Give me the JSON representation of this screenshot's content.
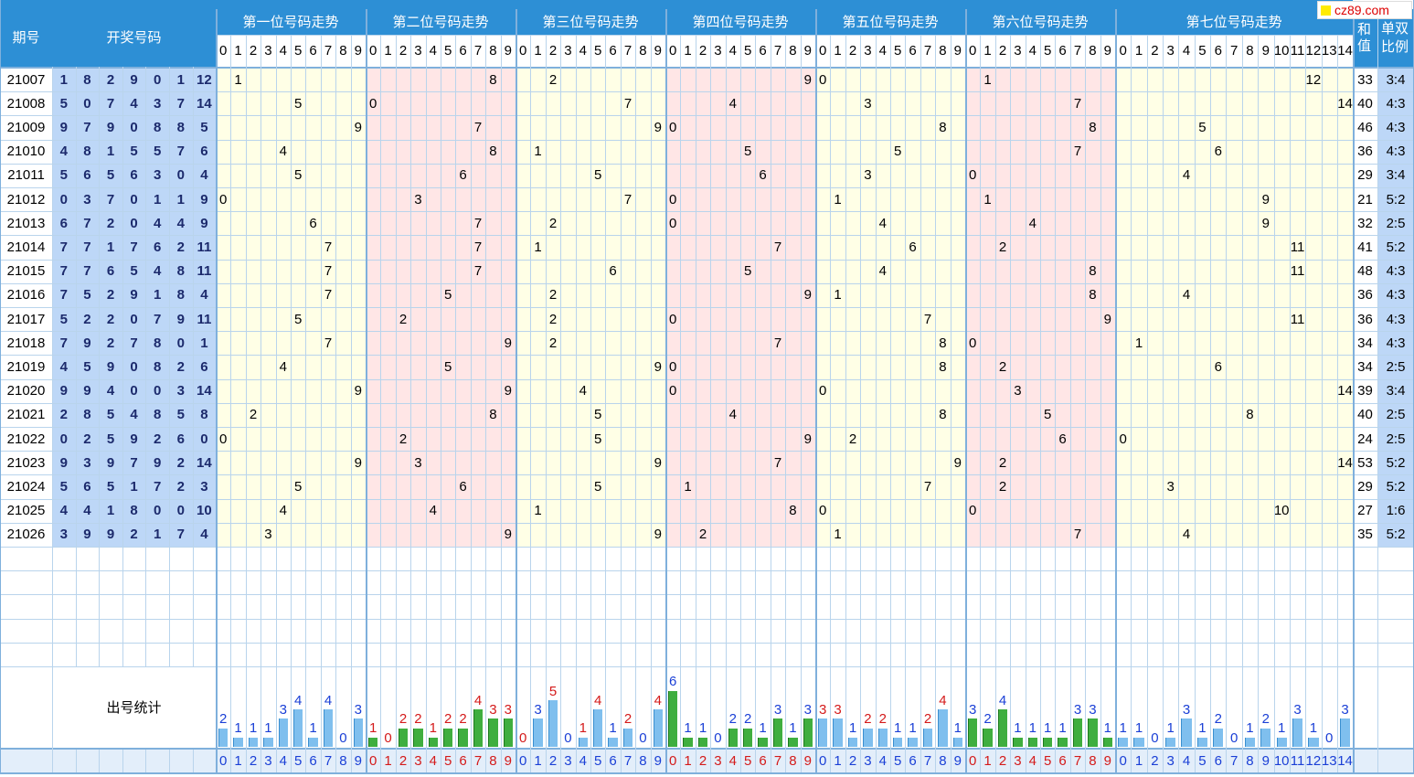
{
  "header": {
    "period_label": "期号",
    "draw_label": "开奖号码",
    "sum_label": "和值",
    "ratio_label": "单双比例",
    "stats_label": "出号统计",
    "logo_text": "cz89.com"
  },
  "positions": [
    {
      "title": "第一位号码走势",
      "digits": [
        "0",
        "1",
        "2",
        "3",
        "4",
        "5",
        "6",
        "7",
        "8",
        "9"
      ],
      "bg": "#ffffe6"
    },
    {
      "title": "第二位号码走势",
      "digits": [
        "0",
        "1",
        "2",
        "3",
        "4",
        "5",
        "6",
        "7",
        "8",
        "9"
      ],
      "bg": "#ffe6e6"
    },
    {
      "title": "第三位号码走势",
      "digits": [
        "0",
        "1",
        "2",
        "3",
        "4",
        "5",
        "6",
        "7",
        "8",
        "9"
      ],
      "bg": "#ffffe6"
    },
    {
      "title": "第四位号码走势",
      "digits": [
        "0",
        "1",
        "2",
        "3",
        "4",
        "5",
        "6",
        "7",
        "8",
        "9"
      ],
      "bg": "#ffe6e6"
    },
    {
      "title": "第五位号码走势",
      "digits": [
        "0",
        "1",
        "2",
        "3",
        "4",
        "5",
        "6",
        "7",
        "8",
        "9"
      ],
      "bg": "#ffffe6"
    },
    {
      "title": "第六位号码走势",
      "digits": [
        "0",
        "1",
        "2",
        "3",
        "4",
        "5",
        "6",
        "7",
        "8",
        "9"
      ],
      "bg": "#ffe6e6"
    },
    {
      "title": "第七位号码走势",
      "digits": [
        "0",
        "1",
        "2",
        "3",
        "4",
        "5",
        "6",
        "7",
        "8",
        "9",
        "10",
        "11",
        "12",
        "13",
        "14"
      ],
      "bg": "#ffffe6"
    }
  ],
  "colors": {
    "header_bg": "#2d8fd5",
    "draw_bg": "#bdd7f7",
    "grid": "#b9d4ec",
    "bar_blue": "#7fbfee",
    "bar_green": "#3fae3f",
    "blue_text": "#1a3fd6",
    "red_text": "#d41a1a"
  },
  "chart_data": {
    "type": "table",
    "rows": [
      {
        "period": "21007",
        "nums": [
          "1",
          "8",
          "2",
          "9",
          "0",
          "1",
          "12"
        ],
        "sum": "33",
        "ratio": "3:4"
      },
      {
        "period": "21008",
        "nums": [
          "5",
          "0",
          "7",
          "4",
          "3",
          "7",
          "14"
        ],
        "sum": "40",
        "ratio": "4:3"
      },
      {
        "period": "21009",
        "nums": [
          "9",
          "7",
          "9",
          "0",
          "8",
          "8",
          "5"
        ],
        "sum": "46",
        "ratio": "4:3"
      },
      {
        "period": "21010",
        "nums": [
          "4",
          "8",
          "1",
          "5",
          "5",
          "7",
          "6"
        ],
        "sum": "36",
        "ratio": "4:3"
      },
      {
        "period": "21011",
        "nums": [
          "5",
          "6",
          "5",
          "6",
          "3",
          "0",
          "4"
        ],
        "sum": "29",
        "ratio": "3:4"
      },
      {
        "period": "21012",
        "nums": [
          "0",
          "3",
          "7",
          "0",
          "1",
          "1",
          "9"
        ],
        "sum": "21",
        "ratio": "5:2"
      },
      {
        "period": "21013",
        "nums": [
          "6",
          "7",
          "2",
          "0",
          "4",
          "4",
          "9"
        ],
        "sum": "32",
        "ratio": "2:5"
      },
      {
        "period": "21014",
        "nums": [
          "7",
          "7",
          "1",
          "7",
          "6",
          "2",
          "11"
        ],
        "sum": "41",
        "ratio": "5:2"
      },
      {
        "period": "21015",
        "nums": [
          "7",
          "7",
          "6",
          "5",
          "4",
          "8",
          "11"
        ],
        "sum": "48",
        "ratio": "4:3"
      },
      {
        "period": "21016",
        "nums": [
          "7",
          "5",
          "2",
          "9",
          "1",
          "8",
          "4"
        ],
        "sum": "36",
        "ratio": "4:3"
      },
      {
        "period": "21017",
        "nums": [
          "5",
          "2",
          "2",
          "0",
          "7",
          "9",
          "11"
        ],
        "sum": "36",
        "ratio": "4:3"
      },
      {
        "period": "21018",
        "nums": [
          "7",
          "9",
          "2",
          "7",
          "8",
          "0",
          "1"
        ],
        "sum": "34",
        "ratio": "4:3"
      },
      {
        "period": "21019",
        "nums": [
          "4",
          "5",
          "9",
          "0",
          "8",
          "2",
          "6"
        ],
        "sum": "34",
        "ratio": "2:5"
      },
      {
        "period": "21020",
        "nums": [
          "9",
          "9",
          "4",
          "0",
          "0",
          "3",
          "14"
        ],
        "sum": "39",
        "ratio": "3:4"
      },
      {
        "period": "21021",
        "nums": [
          "2",
          "8",
          "5",
          "4",
          "8",
          "5",
          "8"
        ],
        "sum": "40",
        "ratio": "2:5"
      },
      {
        "period": "21022",
        "nums": [
          "0",
          "2",
          "5",
          "9",
          "2",
          "6",
          "0"
        ],
        "sum": "24",
        "ratio": "2:5"
      },
      {
        "period": "21023",
        "nums": [
          "9",
          "3",
          "9",
          "7",
          "9",
          "2",
          "14"
        ],
        "sum": "53",
        "ratio": "5:2"
      },
      {
        "period": "21024",
        "nums": [
          "5",
          "6",
          "5",
          "1",
          "7",
          "2",
          "3"
        ],
        "sum": "29",
        "ratio": "5:2"
      },
      {
        "period": "21025",
        "nums": [
          "4",
          "4",
          "1",
          "8",
          "0",
          "0",
          "10"
        ],
        "sum": "27",
        "ratio": "1:6"
      },
      {
        "period": "21026",
        "nums": [
          "3",
          "9",
          "9",
          "2",
          "1",
          "7",
          "4"
        ],
        "sum": "35",
        "ratio": "5:2"
      }
    ],
    "stats": [
      [
        2,
        1,
        1,
        1,
        3,
        4,
        1,
        4,
        0,
        3
      ],
      [
        1,
        0,
        2,
        2,
        1,
        2,
        2,
        4,
        3,
        3
      ],
      [
        0,
        3,
        5,
        0,
        1,
        4,
        1,
        2,
        0,
        4
      ],
      [
        6,
        1,
        1,
        0,
        2,
        2,
        1,
        3,
        1,
        3
      ],
      [
        3,
        3,
        1,
        2,
        2,
        1,
        1,
        2,
        4,
        1
      ],
      [
        3,
        2,
        4,
        1,
        1,
        1,
        1,
        3,
        3,
        1
      ],
      [
        1,
        1,
        0,
        1,
        3,
        1,
        2,
        0,
        1,
        2,
        1,
        3,
        1,
        0,
        3
      ]
    ],
    "stat_label_colors": [
      [
        "b",
        "b",
        "b",
        "b",
        "b",
        "b",
        "b",
        "b",
        "b",
        "b"
      ],
      [
        "r",
        "r",
        "r",
        "r",
        "r",
        "r",
        "r",
        "r",
        "r",
        "r"
      ],
      [
        "r",
        "b",
        "r",
        "b",
        "r",
        "r",
        "b",
        "r",
        "b",
        "r"
      ],
      [
        "b",
        "b",
        "b",
        "b",
        "b",
        "b",
        "b",
        "b",
        "b",
        "b"
      ],
      [
        "r",
        "r",
        "b",
        "r",
        "r",
        "b",
        "b",
        "r",
        "r",
        "b"
      ],
      [
        "b",
        "b",
        "b",
        "b",
        "b",
        "b",
        "b",
        "b",
        "b",
        "b"
      ],
      [
        "b",
        "b",
        "b",
        "b",
        "b",
        "b",
        "b",
        "b",
        "b",
        "b",
        "b",
        "b",
        "b",
        "b",
        "b"
      ]
    ],
    "stat_bar_green": [
      false,
      true,
      false,
      true,
      false,
      true,
      false
    ]
  }
}
